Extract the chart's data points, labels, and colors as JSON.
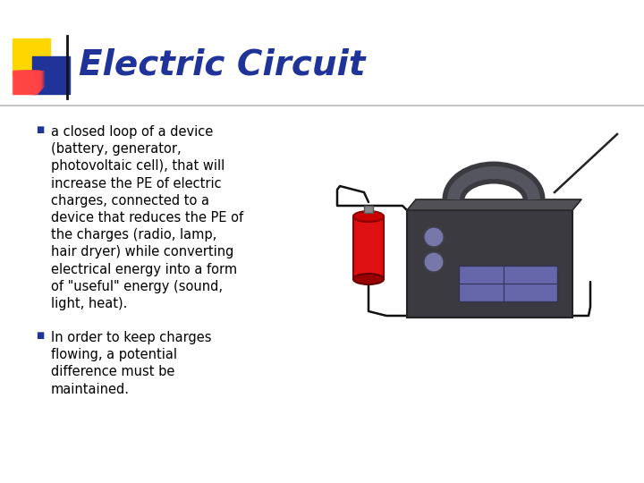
{
  "title": "Electric Circuit",
  "title_color": "#1F3399",
  "title_fontsize": 28,
  "background_color": "#FFFFFF",
  "bullet1": "a closed loop of a device\n(battery, generator,\nphotovoltaic cell), that will\nincrease the PE of electric\ncharges, connected to a\ndevice that reduces the PE of\nthe charges (radio, lamp,\nhair dryer) while converting\nelectrical energy into a form\nof \"useful\" energy (sound,\nlight, heat).",
  "bullet2": "In order to keep charges\nflowing, a potential\ndifference must be\nmaintained.",
  "bullet_color": "#000000",
  "bullet_fontsize": 10.5,
  "bullet_marker_color": "#1F3399",
  "accent_yellow": "#FFD700",
  "accent_blue": "#1F3399",
  "accent_red_grad_top": "#FF8888",
  "accent_red_grad_bot": "#CC0000",
  "line_color": "#BBBBBB",
  "radio_body_color": "#3A3A40",
  "radio_handle_outer": "#3A3A40",
  "radio_handle_inner": "#555560",
  "knob_color": "#7777AA",
  "grille_color": "#6666AA",
  "battery_red": "#DD1111",
  "battery_top": "#AA0000",
  "battery_cap": "#888888",
  "wire_color": "#111111"
}
